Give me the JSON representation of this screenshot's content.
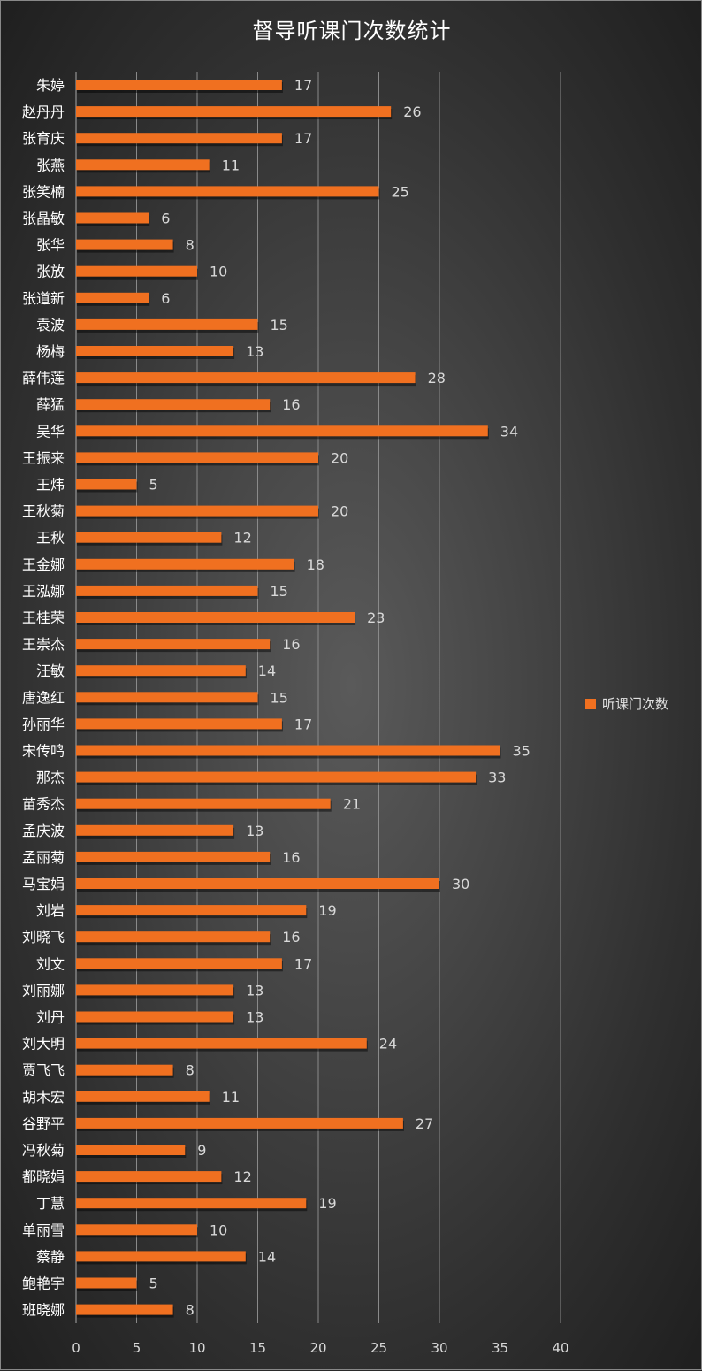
{
  "chart_data": {
    "type": "bar",
    "orientation": "horizontal",
    "title": "督导听课门次数统计",
    "categories": [
      "朱婷",
      "赵丹丹",
      "张育庆",
      "张燕",
      "张笑楠",
      "张晶敏",
      "张华",
      "张放",
      "张道新",
      "袁波",
      "杨梅",
      "薛伟莲",
      "薛猛",
      "吴华",
      "王振来",
      "王炜",
      "王秋菊",
      "王秋",
      "王金娜",
      "王泓娜",
      "王桂荣",
      "王崇杰",
      "汪敏",
      "唐逸红",
      "孙丽华",
      "宋传鸣",
      "那杰",
      "苗秀杰",
      "孟庆波",
      "孟丽菊",
      "马宝娟",
      "刘岩",
      "刘晓飞",
      "刘文",
      "刘丽娜",
      "刘丹",
      "刘大明",
      "贾飞飞",
      "胡木宏",
      "谷野平",
      "冯秋菊",
      "都晓娟",
      "丁慧",
      "单丽雪",
      "蔡静",
      "鲍艳宇",
      "班晓娜"
    ],
    "series": [
      {
        "name": "听课门次数",
        "values": [
          17,
          26,
          17,
          11,
          25,
          6,
          8,
          10,
          6,
          15,
          13,
          28,
          16,
          34,
          20,
          5,
          20,
          12,
          18,
          15,
          23,
          16,
          14,
          15,
          17,
          35,
          33,
          21,
          13,
          16,
          30,
          19,
          16,
          17,
          13,
          13,
          24,
          8,
          11,
          27,
          9,
          12,
          19,
          10,
          14,
          5,
          8
        ]
      }
    ],
    "xlim": [
      0,
      40
    ],
    "xticks": [
      "0",
      "5",
      "10",
      "15",
      "20",
      "25",
      "30",
      "35",
      "40"
    ],
    "grid": true,
    "legend_position": "right",
    "colors": {
      "bar": "#f07020",
      "label": "#d9d9d9",
      "grid": "#8a8a8a",
      "background": "#3c3c3c"
    }
  }
}
